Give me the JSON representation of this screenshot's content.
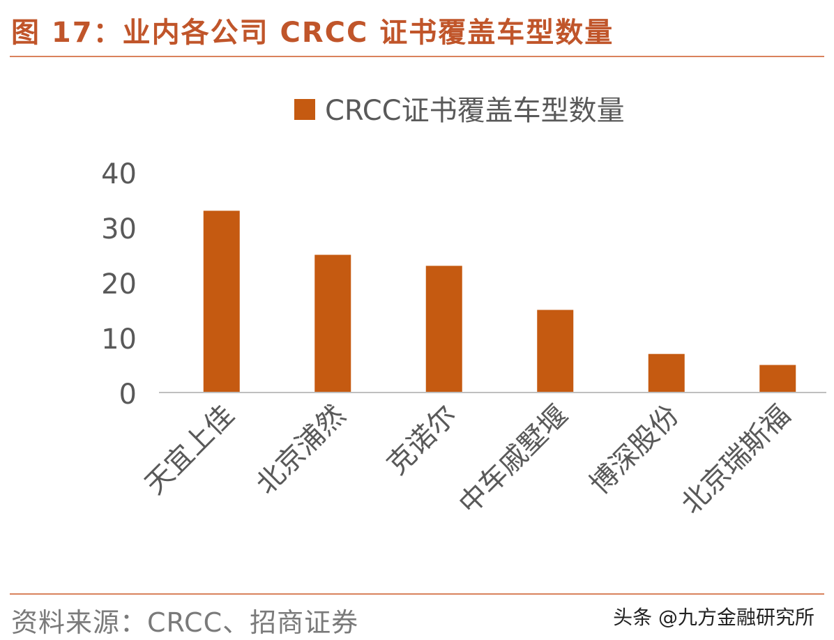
{
  "figure": {
    "title": "图 17：业内各公司 CRCC 证书覆盖车型数量",
    "source": "资料来源：CRCC、招商证券",
    "watermark": "头条 @九方金融研究所"
  },
  "colors": {
    "accent": "#C0552A",
    "bar": "#C55A11",
    "axis_text": "#595959"
  },
  "chart_data": {
    "type": "bar",
    "categories": [
      "天宜上佳",
      "北京浦然",
      "克诺尔",
      "中车戚墅堰",
      "博深股份",
      "北京瑞斯福"
    ],
    "series": [
      {
        "name": "CRCC证书覆盖车型数量",
        "values": [
          33,
          25,
          23,
          15,
          7,
          5
        ]
      }
    ],
    "ylim": [
      0,
      40
    ],
    "yticks": [
      0,
      10,
      20,
      30,
      40
    ],
    "grid": false,
    "legend": "top"
  }
}
